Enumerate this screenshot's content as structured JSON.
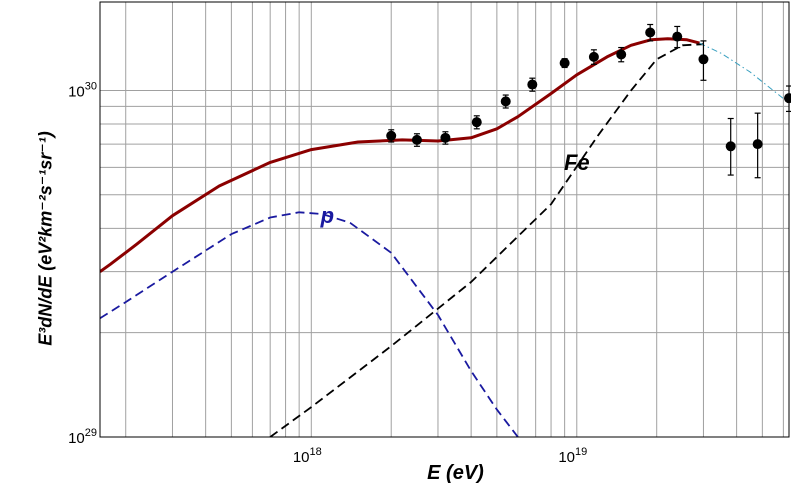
{
  "chart_data": {
    "type": "line",
    "title": "",
    "xlabel": "E (eV)",
    "ylabel": "E³dN/dE  (eV²km⁻²s⁻¹sr⁻¹)",
    "xscale": "log",
    "yscale": "log",
    "xlim": [
      1.6e+17,
      6.3e+19
    ],
    "ylim": [
      1e+29,
      1.8e+30
    ],
    "x_ticks": [
      {
        "value": 1e+18,
        "base": "10",
        "exp": "18"
      },
      {
        "value": 1e+19,
        "base": "10",
        "exp": "19"
      }
    ],
    "y_ticks": [
      {
        "value": 1e+29,
        "base": "10",
        "exp": "29"
      },
      {
        "value": 1e+30,
        "base": "10",
        "exp": "30"
      }
    ],
    "grid": true,
    "annotations": [
      {
        "text": "Fe",
        "x": 1e+19,
        "y": 5.9e+29,
        "color": "#000000"
      },
      {
        "text": "p",
        "x": 1.15e+18,
        "y": 4.15e+29,
        "color": "#1a1aa0"
      }
    ],
    "series": [
      {
        "style": "solid",
        "color": "#8b0000",
        "x": [
          1.6e+17,
          1.75e+17,
          2.2e+17,
          3e+17,
          4.5e+17,
          7e+17,
          1e+18,
          1.5e+18,
          2.2e+18,
          3e+18,
          4e+18,
          5e+18,
          6e+18,
          8e+18,
          1e+19,
          1.3e+19,
          1.6e+19,
          1.9e+19,
          2.2e+19,
          2.6e+19,
          2.9e+19
        ],
        "y": [
          3e+29,
          3.15e+29,
          3.6e+29,
          4.35e+29,
          5.3e+29,
          6.2e+29,
          6.75e+29,
          7.1e+29,
          7.2e+29,
          7.15e+29,
          7.3e+29,
          7.75e+29,
          8.4e+29,
          9.8e+29,
          1.11e+30,
          1.25e+30,
          1.35e+30,
          1.4e+30,
          1.41e+30,
          1.4e+30,
          1.37e+30
        ]
      },
      {
        "style": "dashed",
        "color": "#000000",
        "x": [
          7e+17,
          1e+18,
          2e+18,
          4e+18,
          8e+18,
          1.2e+19,
          1.6e+19,
          2e+19,
          2.5e+19,
          3e+19
        ],
        "y": [
          1e+29,
          1.22e+29,
          1.83e+29,
          2.8e+29,
          4.7e+29,
          7.4e+29,
          1e+30,
          1.23e+30,
          1.35e+30,
          1.36e+30
        ]
      },
      {
        "style": "dashed",
        "color": "#1a1aa0",
        "x": [
          1.6e+17,
          2e+17,
          3e+17,
          5e+17,
          7e+17,
          9e+17,
          1.1e+18,
          1.4e+18,
          2e+18,
          3e+18,
          4e+18,
          5e+18,
          6e+18
        ],
        "y": [
          2.2e+29,
          2.45e+29,
          3e+29,
          3.85e+29,
          4.3e+29,
          4.45e+29,
          4.4e+29,
          4.15e+29,
          3.4e+29,
          2.25e+29,
          1.55e+29,
          1.2e+29,
          1e+29
        ]
      },
      {
        "style": "dashdot",
        "color": "#3aa0c0",
        "x": [
          2.9e+19,
          3.5e+19,
          4.5e+19,
          5.5e+19,
          6.3e+19
        ],
        "y": [
          1.37e+30,
          1.28e+30,
          1.13e+30,
          1e+30,
          9.2e+29
        ]
      }
    ],
    "points": {
      "color": "#000000",
      "x": [
        2e+18,
        2.5e+18,
        3.2e+18,
        4.2e+18,
        5.4e+18,
        6.8e+18,
        9e+18,
        1.16e+19,
        1.47e+19,
        1.89e+19,
        2.39e+19,
        3e+19,
        3.8e+19,
        4.8e+19,
        6.3e+19
      ],
      "y": [
        7.4e+29,
        7.2e+29,
        7.3e+29,
        8.1e+29,
        9.3e+29,
        1.04e+30,
        1.2e+30,
        1.25e+30,
        1.27e+30,
        1.47e+30,
        1.43e+30,
        1.23e+30,
        6.9e+29,
        7e+29,
        9.5e+29
      ],
      "yerr_lo": [
        3e+28,
        3e+28,
        3e+28,
        3.5e+28,
        4e+28,
        4.5e+28,
        3.5e+28,
        6e+28,
        6e+28,
        8e+28,
        1e+29,
        1.6e+29,
        1.2e+29,
        1.4e+29,
        8e+28
      ],
      "yerr_hi": [
        3e+28,
        3e+28,
        3e+28,
        3.5e+28,
        4e+28,
        4.5e+28,
        3.5e+28,
        6e+28,
        6e+28,
        8e+28,
        1e+29,
        1.6e+29,
        1.4e+29,
        1.6e+29,
        8e+28
      ]
    }
  }
}
